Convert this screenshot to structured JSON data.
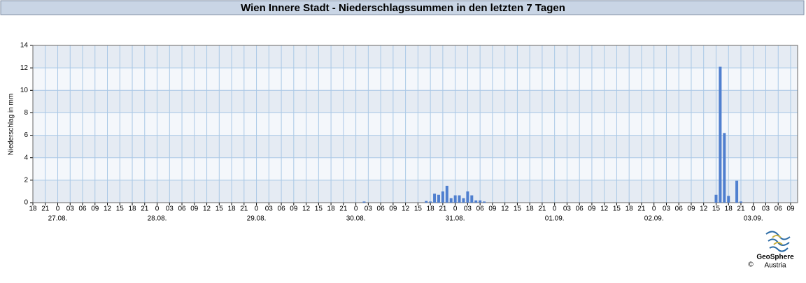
{
  "chart_data": {
    "type": "bar",
    "title": "Wien Innere Stadt - Niederschlagssummen in den letzten 7 Tagen",
    "ylabel": "Niederschlag in mm",
    "x": [
      80,
      95,
      96,
      97,
      98,
      99,
      100,
      101,
      102,
      103,
      104,
      105,
      106,
      107,
      108,
      109,
      165,
      166,
      167,
      168,
      170,
      171
    ],
    "values": [
      0.1,
      0.15,
      0.1,
      0.8,
      0.7,
      1.0,
      1.5,
      0.4,
      0.65,
      0.65,
      0.4,
      1.0,
      0.65,
      0.2,
      0.2,
      0.1,
      0.7,
      12.1,
      6.2,
      0.6,
      1.95,
      0.1
    ],
    "color": "#4f7fcf",
    "xlim": [
      0,
      183
    ],
    "xticks": [
      {
        "value": 0,
        "label": "18"
      },
      {
        "value": 3,
        "label": "21"
      },
      {
        "value": 6,
        "label": "0"
      },
      {
        "value": 9,
        "label": "03"
      },
      {
        "value": 12,
        "label": "06"
      },
      {
        "value": 15,
        "label": "09"
      },
      {
        "value": 18,
        "label": "12"
      },
      {
        "value": 21,
        "label": "15"
      },
      {
        "value": 24,
        "label": "18"
      },
      {
        "value": 27,
        "label": "21"
      },
      {
        "value": 30,
        "label": "0"
      },
      {
        "value": 33,
        "label": "03"
      },
      {
        "value": 36,
        "label": "06"
      },
      {
        "value": 39,
        "label": "09"
      },
      {
        "value": 42,
        "label": "12"
      },
      {
        "value": 45,
        "label": "15"
      },
      {
        "value": 48,
        "label": "18"
      },
      {
        "value": 51,
        "label": "21"
      },
      {
        "value": 54,
        "label": "0"
      },
      {
        "value": 57,
        "label": "03"
      },
      {
        "value": 60,
        "label": "06"
      },
      {
        "value": 63,
        "label": "09"
      },
      {
        "value": 66,
        "label": "12"
      },
      {
        "value": 69,
        "label": "15"
      },
      {
        "value": 72,
        "label": "18"
      },
      {
        "value": 75,
        "label": "21"
      },
      {
        "value": 78,
        "label": "0"
      },
      {
        "value": 81,
        "label": "03"
      },
      {
        "value": 84,
        "label": "06"
      },
      {
        "value": 87,
        "label": "09"
      },
      {
        "value": 90,
        "label": "12"
      },
      {
        "value": 93,
        "label": "15"
      },
      {
        "value": 96,
        "label": "18"
      },
      {
        "value": 99,
        "label": "21"
      },
      {
        "value": 102,
        "label": "0"
      },
      {
        "value": 105,
        "label": "03"
      },
      {
        "value": 108,
        "label": "06"
      },
      {
        "value": 111,
        "label": "09"
      },
      {
        "value": 114,
        "label": "12"
      },
      {
        "value": 117,
        "label": "15"
      },
      {
        "value": 120,
        "label": "18"
      },
      {
        "value": 123,
        "label": "21"
      },
      {
        "value": 126,
        "label": "0"
      },
      {
        "value": 129,
        "label": "03"
      },
      {
        "value": 132,
        "label": "06"
      },
      {
        "value": 135,
        "label": "09"
      },
      {
        "value": 138,
        "label": "12"
      },
      {
        "value": 141,
        "label": "15"
      },
      {
        "value": 144,
        "label": "18"
      },
      {
        "value": 147,
        "label": "21"
      },
      {
        "value": 150,
        "label": "0"
      },
      {
        "value": 153,
        "label": "03"
      },
      {
        "value": 156,
        "label": "06"
      },
      {
        "value": 159,
        "label": "09"
      },
      {
        "value": 162,
        "label": "12"
      },
      {
        "value": 165,
        "label": "15"
      },
      {
        "value": 168,
        "label": "18"
      },
      {
        "value": 171,
        "label": "21"
      },
      {
        "value": 174,
        "label": "0"
      },
      {
        "value": 177,
        "label": "03"
      },
      {
        "value": 180,
        "label": "06"
      },
      {
        "value": 183,
        "label": "09"
      }
    ],
    "date_labels": [
      {
        "value": 6,
        "label": "27.08."
      },
      {
        "value": 30,
        "label": "28.08."
      },
      {
        "value": 54,
        "label": "29.08."
      },
      {
        "value": 78,
        "label": "30.08."
      },
      {
        "value": 102,
        "label": "31.08."
      },
      {
        "value": 126,
        "label": "01.09."
      },
      {
        "value": 150,
        "label": "02.09."
      },
      {
        "value": 174,
        "label": "03.09."
      }
    ],
    "ylim": [
      0,
      14
    ],
    "yticks": [
      0,
      2,
      4,
      6,
      8,
      10,
      12,
      14
    ],
    "grid": true
  },
  "logo": {
    "name": "GeoSphere",
    "copyright": "©",
    "sub": "Austria"
  }
}
